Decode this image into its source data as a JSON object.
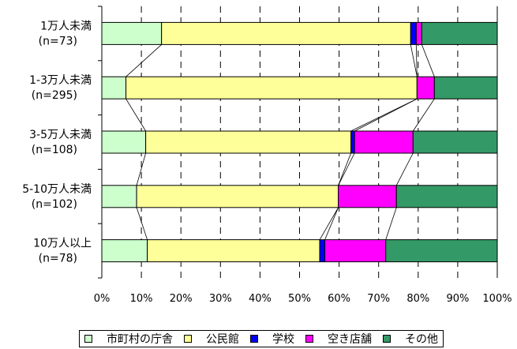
{
  "chart_data": {
    "type": "bar",
    "orientation": "horizontal",
    "stacked": true,
    "categories": [
      [
        "1万人未満",
        "(n=73)"
      ],
      [
        "1-3万人未満",
        "(n=295)"
      ],
      [
        "3-5万人未満",
        "(n=108)"
      ],
      [
        "5-10万人未満",
        "(n=102)"
      ],
      [
        "10万人以上",
        "(n=78)"
      ]
    ],
    "series": [
      {
        "name": "市町村の庁舎",
        "color": "#ccffcc",
        "values": [
          15.1,
          6.1,
          11.1,
          8.8,
          11.5
        ]
      },
      {
        "name": "公民館",
        "color": "#ffff99",
        "values": [
          63.0,
          73.6,
          51.9,
          51.0,
          43.6
        ]
      },
      {
        "name": "学校",
        "color": "#0000ff",
        "values": [
          1.4,
          0.0,
          0.9,
          0.0,
          1.3
        ]
      },
      {
        "name": "空き店舗",
        "color": "#ff00ff",
        "values": [
          1.4,
          4.4,
          14.8,
          14.7,
          15.4
        ]
      },
      {
        "name": "その他",
        "color": "#339966",
        "values": [
          19.1,
          15.9,
          21.3,
          25.5,
          28.2
        ]
      }
    ],
    "x_ticks": [
      "0%",
      "10%",
      "20%",
      "30%",
      "40%",
      "50%",
      "60%",
      "70%",
      "80%",
      "90%",
      "100%"
    ],
    "xlim": [
      0,
      100
    ],
    "grid": "vertical-dashed",
    "series_lines": true,
    "legend_position": "bottom"
  }
}
